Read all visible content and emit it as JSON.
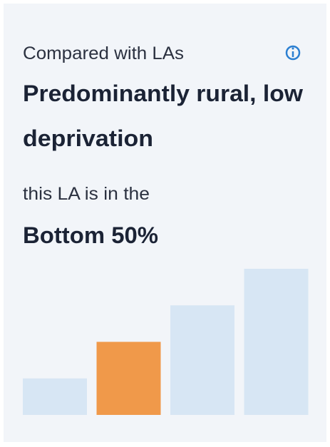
{
  "card": {
    "intro": "Compared with LAs",
    "group": [
      "Predominantly rural, low",
      "deprivation"
    ],
    "position_intro": "this LA is in the",
    "position": "Bottom 50%"
  },
  "chart_data": {
    "type": "bar",
    "values": [
      1,
      2,
      3,
      4
    ],
    "highlight": 1,
    "color": "#d7e6f4",
    "highlight_color": "#f0994a"
  }
}
